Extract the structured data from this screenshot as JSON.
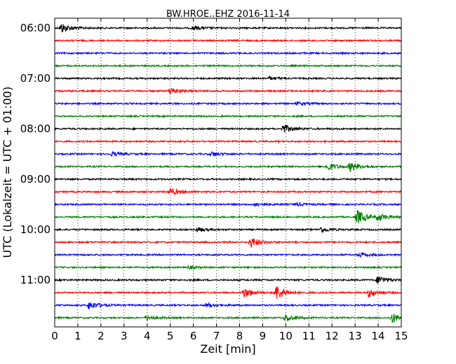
{
  "chart_data": {
    "type": "line",
    "subtype": "seismic-helicorder",
    "title": "BW.HROE..EHZ 2016-11-14",
    "xlabel": "Zeit  [min]",
    "ylabel": "UTC (Lokalzeit = UTC + 01:00)",
    "xlim": [
      0,
      15
    ],
    "x_ticks": [
      "0",
      "1",
      "2",
      "3",
      "4",
      "5",
      "6",
      "7",
      "8",
      "9",
      "10",
      "11",
      "12",
      "13",
      "14",
      "15"
    ],
    "y_ticks": [
      "06:00",
      "07:00",
      "08:00",
      "09:00",
      "10:00",
      "11:00"
    ],
    "y_tick_traces": [
      0,
      4,
      8,
      12,
      16,
      20
    ],
    "trace_minutes": 15,
    "grid": "x-dotted",
    "colors": [
      "#000000",
      "#ff0000",
      "#0000ff",
      "#008000"
    ],
    "series": [
      {
        "values": []
      }
    ],
    "traces": [
      {
        "time": "06:00",
        "events": [
          {
            "t": 0.3,
            "amp": 7
          },
          {
            "t": 6,
            "amp": 3
          }
        ]
      },
      {
        "time": "06:15",
        "events": []
      },
      {
        "time": "06:30",
        "events": []
      },
      {
        "time": "06:45",
        "events": []
      },
      {
        "time": "07:00",
        "events": [
          {
            "t": 9.3,
            "amp": 2
          }
        ]
      },
      {
        "time": "07:15",
        "events": [
          {
            "t": 5.0,
            "amp": 5
          }
        ]
      },
      {
        "time": "07:30",
        "events": [
          {
            "t": 10.5,
            "amp": 2
          }
        ]
      },
      {
        "time": "07:45",
        "events": []
      },
      {
        "time": "08:00",
        "events": [
          {
            "t": 9.9,
            "amp": 6
          }
        ]
      },
      {
        "time": "08:15",
        "events": []
      },
      {
        "time": "08:30",
        "events": [
          {
            "t": 2.5,
            "amp": 3
          },
          {
            "t": 6.8,
            "amp": 3
          }
        ]
      },
      {
        "time": "08:45",
        "events": [
          {
            "t": 11.8,
            "amp": 6
          },
          {
            "t": 12.8,
            "amp": 7
          }
        ]
      },
      {
        "time": "09:00",
        "events": []
      },
      {
        "time": "09:15",
        "events": [
          {
            "t": 5.0,
            "amp": 5
          }
        ]
      },
      {
        "time": "09:30",
        "events": [
          {
            "t": 8.7,
            "amp": 3
          },
          {
            "t": 10.5,
            "amp": 2
          }
        ]
      },
      {
        "time": "09:45",
        "events": [
          {
            "t": 13.1,
            "amp": 10
          },
          {
            "t": 14.0,
            "amp": 5
          }
        ]
      },
      {
        "time": "10:00",
        "events": [
          {
            "t": 6.2,
            "amp": 3
          },
          {
            "t": 11.5,
            "amp": 4
          }
        ]
      },
      {
        "time": "10:15",
        "events": [
          {
            "t": 8.5,
            "amp": 7
          }
        ]
      },
      {
        "time": "10:30",
        "events": [
          {
            "t": 13.2,
            "amp": 3
          }
        ]
      },
      {
        "time": "10:45",
        "events": [
          {
            "t": 5.8,
            "amp": 2
          }
        ]
      },
      {
        "time": "11:00",
        "events": [
          {
            "t": 14.0,
            "amp": 6
          }
        ]
      },
      {
        "time": "11:15",
        "events": [
          {
            "t": 8.2,
            "amp": 7
          },
          {
            "t": 9.6,
            "amp": 11
          },
          {
            "t": 13.6,
            "amp": 6
          }
        ]
      },
      {
        "time": "11:30",
        "events": [
          {
            "t": 1.5,
            "amp": 6
          },
          {
            "t": 6.6,
            "amp": 3
          }
        ]
      },
      {
        "time": "11:45",
        "events": [
          {
            "t": 4.0,
            "amp": 3
          },
          {
            "t": 10.0,
            "amp": 5
          },
          {
            "t": 14.6,
            "amp": 7
          }
        ]
      }
    ]
  }
}
